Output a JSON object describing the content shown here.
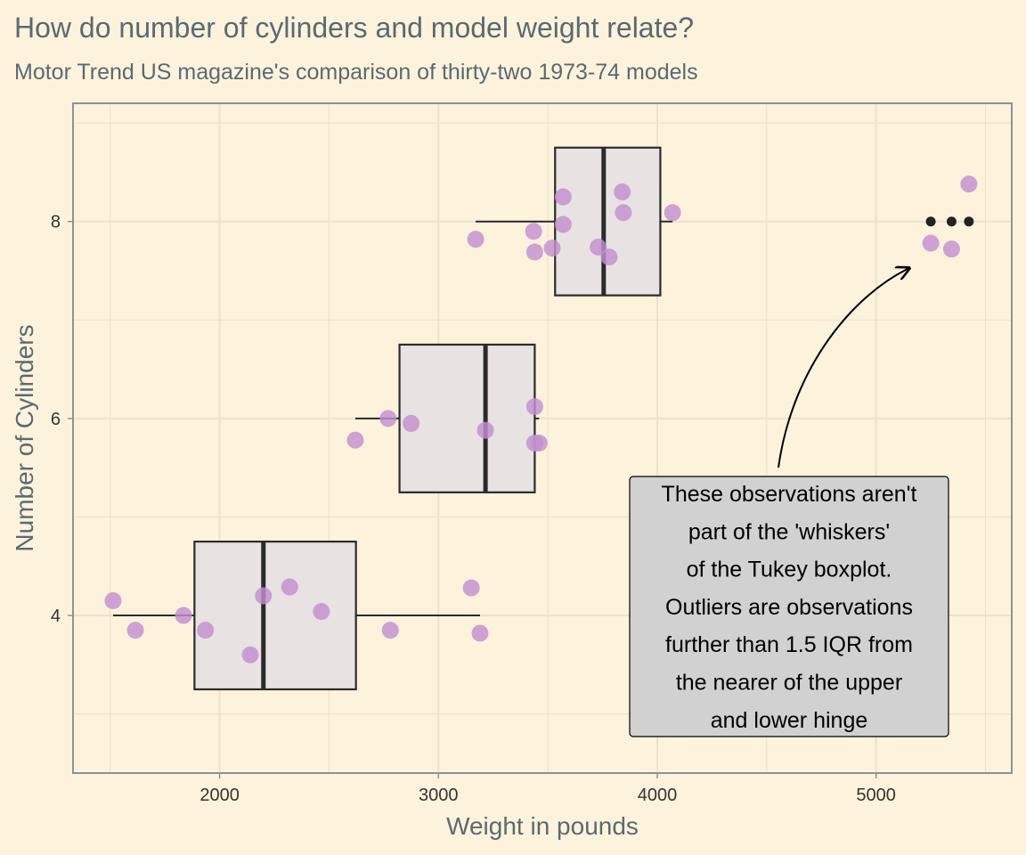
{
  "title": "How do number of cylinders and model weight relate?",
  "subtitle": "Motor Trend US magazine's comparison of thirty-two 1973-74 models",
  "chart_data": {
    "type": "boxplot",
    "title": "How do number of cylinders and model weight relate?",
    "subtitle": "Motor Trend US magazine's comparison of thirty-two 1973-74 models",
    "xlabel": "Weight in pounds",
    "ylabel": "Number of Cylinders",
    "xlim": [
      1330,
      5620
    ],
    "ylim": [
      2.4,
      9.2
    ],
    "x_ticks": [
      2000,
      3000,
      4000,
      5000
    ],
    "y_ticks": [
      4,
      6,
      8
    ],
    "grid": true,
    "groups": [
      {
        "cyl": 4,
        "box": {
          "whisker_low": 1513,
          "q1": 1885,
          "median": 2200,
          "q3": 2623,
          "whisker_high": 3190
        },
        "outliers": [],
        "points": [
          {
            "x": 1513,
            "y": 4.15
          },
          {
            "x": 1615,
            "y": 3.85
          },
          {
            "x": 1835,
            "y": 4.0
          },
          {
            "x": 1935,
            "y": 3.85
          },
          {
            "x": 2140,
            "y": 3.6
          },
          {
            "x": 2200,
            "y": 4.2
          },
          {
            "x": 2320,
            "y": 4.29
          },
          {
            "x": 2465,
            "y": 4.04
          },
          {
            "x": 2780,
            "y": 3.85
          },
          {
            "x": 3150,
            "y": 4.28
          },
          {
            "x": 3190,
            "y": 3.82
          }
        ]
      },
      {
        "cyl": 6,
        "box": {
          "whisker_low": 2620,
          "q1": 2822,
          "median": 3215,
          "q3": 3440,
          "whisker_high": 3460
        },
        "outliers": [],
        "points": [
          {
            "x": 2620,
            "y": 5.78
          },
          {
            "x": 2770,
            "y": 6.0
          },
          {
            "x": 2875,
            "y": 5.95
          },
          {
            "x": 3215,
            "y": 5.88
          },
          {
            "x": 3440,
            "y": 6.12
          },
          {
            "x": 3440,
            "y": 5.75
          },
          {
            "x": 3460,
            "y": 5.75
          }
        ]
      },
      {
        "cyl": 8,
        "box": {
          "whisker_low": 3170,
          "q1": 3533,
          "median": 3755,
          "q3": 4014,
          "whisker_high": 4070
        },
        "outliers": [
          5250,
          5345,
          5424
        ],
        "points": [
          {
            "x": 3170,
            "y": 7.82
          },
          {
            "x": 3435,
            "y": 7.9
          },
          {
            "x": 3440,
            "y": 7.69
          },
          {
            "x": 3520,
            "y": 7.73
          },
          {
            "x": 3570,
            "y": 8.25
          },
          {
            "x": 3570,
            "y": 7.97
          },
          {
            "x": 3730,
            "y": 7.74
          },
          {
            "x": 3780,
            "y": 7.64
          },
          {
            "x": 3840,
            "y": 8.3
          },
          {
            "x": 3845,
            "y": 8.09
          },
          {
            "x": 4070,
            "y": 8.09
          },
          {
            "x": 5250,
            "y": 7.78
          },
          {
            "x": 5345,
            "y": 7.72
          },
          {
            "x": 5424,
            "y": 8.38
          }
        ]
      }
    ],
    "annotation": {
      "text": "These observations aren't part of the 'whiskers' of the Tukey boxplot. Outliers are observations further than 1.5 IQR from the nearer of the upper and lower hinge",
      "lines": [
        "These observations aren't",
        "part of the 'whiskers'",
        "of the Tukey boxplot.",
        "Outliers are observations",
        "further than 1.5 IQR from",
        "the nearer of the upper",
        "and lower hinge"
      ]
    },
    "colors": {
      "background": "#fdf3dc",
      "grid": "#eae3cc",
      "box_fill": "#e8e2e2",
      "box_stroke": "#2b2b2b",
      "points": "#c28fcf",
      "outliers": "#222222",
      "panel_border": "#8a9396",
      "annotation_fill": "#d1d1d1"
    }
  }
}
